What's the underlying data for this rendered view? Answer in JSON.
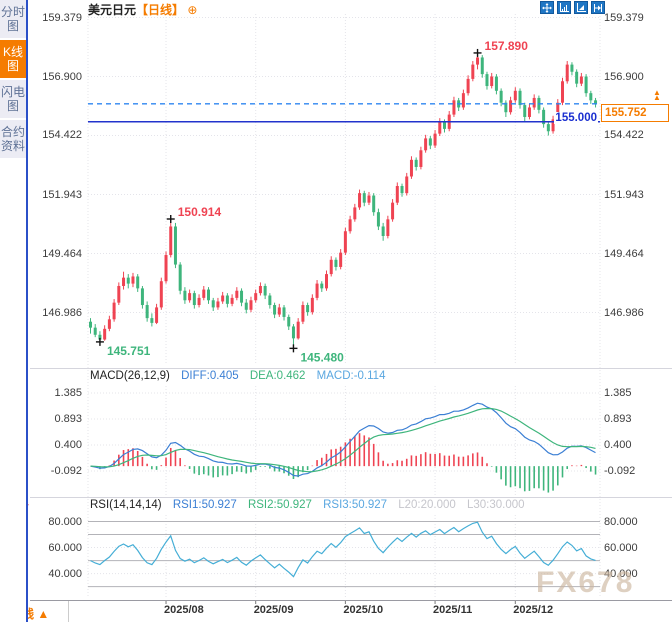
{
  "sidebar": {
    "tabs": [
      {
        "label": "分时图",
        "active": false
      },
      {
        "label": "K线图",
        "active": true
      },
      {
        "label": "闪电图",
        "active": false
      },
      {
        "label": "合约资料",
        "active": false
      }
    ]
  },
  "header": {
    "title": "美元日元",
    "timeframe": "【日线】",
    "add_icon": "⊕",
    "toolbar_icons": [
      "pan-icon",
      "scale-axis-icon",
      "scale-time-icon",
      "jump-latest-icon"
    ]
  },
  "main_chart": {
    "y_axis_labels": [
      "159.379",
      "156.900",
      "154.422",
      "151.943",
      "149.464",
      "146.986"
    ],
    "alert_line": {
      "label": "155.000",
      "price": 155.0
    },
    "current_price": {
      "label": "155.752",
      "price": 155.752,
      "marker": "▲"
    }
  },
  "macd_panel": {
    "title": "MACD(26,12,9)",
    "diff_label": "DIFF:0.405",
    "dea_label": "DEA:0.462",
    "macd_label": "MACD:-0.114",
    "axis_labels": [
      "1.385",
      "0.893",
      "0.400",
      "-0.092"
    ]
  },
  "rsi_panel": {
    "title": "RSI(14,14,14)",
    "rsi1_label": "RSI1:50.927",
    "rsi2_label": "RSI2:50.927",
    "rsi3_label": "RSI3:50.927",
    "l20_label": "L20:20.000",
    "l30_label": "L30:30.000",
    "axis_labels": [
      "80.000",
      "60.000",
      "40.000"
    ],
    "levels": [
      80,
      70,
      50,
      30
    ]
  },
  "footer": {
    "period_label": "日线",
    "arrow": "▲"
  },
  "watermark": "FX678",
  "colors": {
    "up": "#ef4352",
    "down": "#3eb57c",
    "accent": "#f57c00",
    "alert_blue": "#2233cc",
    "dash_blue": "#2e86f0",
    "diff_blue": "#3b7fd4",
    "dea_green": "#3eb57c",
    "rsi_blue": "#45aed6",
    "grid": "#e4e4ea",
    "level_gray": "#b3b3b8",
    "marker_black": "#111"
  },
  "chart_data": {
    "type": "candlestick",
    "symbol": "美元日元",
    "interval": "日线",
    "y_ticks": [
      159.379,
      156.9,
      154.422,
      151.943,
      149.464,
      146.986
    ],
    "macd_ticks": [
      1.385,
      0.893,
      0.4,
      -0.092
    ],
    "rsi_ticks": [
      80,
      60,
      40
    ],
    "months": [
      {
        "label": "2025/08",
        "index": 16
      },
      {
        "label": "2025/09",
        "index": 35
      },
      {
        "label": "2025/10",
        "index": 54
      },
      {
        "label": "2025/11",
        "index": 73
      },
      {
        "label": "2025/12",
        "index": 90
      }
    ],
    "annotations": [
      {
        "index": 2,
        "price": 145.751,
        "label": "145.751",
        "color": "down",
        "placement": "below"
      },
      {
        "index": 17,
        "price": 150.914,
        "label": "150.914",
        "color": "up",
        "placement": "above"
      },
      {
        "index": 43,
        "price": 145.48,
        "label": "145.480",
        "color": "down",
        "placement": "below"
      },
      {
        "index": 82,
        "price": 157.89,
        "label": "157.890",
        "color": "up",
        "placement": "above"
      }
    ],
    "candles": [
      [
        146.6,
        146.75,
        146.1,
        146.35
      ],
      [
        146.35,
        146.5,
        145.95,
        146.05
      ],
      [
        146.05,
        146.2,
        145.751,
        145.85
      ],
      [
        145.85,
        146.45,
        145.8,
        146.3
      ],
      [
        146.3,
        146.85,
        146.2,
        146.7
      ],
      [
        146.7,
        147.55,
        146.6,
        147.4
      ],
      [
        147.4,
        148.25,
        147.3,
        148.1
      ],
      [
        148.1,
        148.7,
        147.95,
        148.45
      ],
      [
        148.45,
        148.6,
        148.0,
        148.2
      ],
      [
        148.2,
        148.65,
        148.05,
        148.5
      ],
      [
        148.5,
        148.6,
        147.85,
        148.0
      ],
      [
        148.0,
        148.1,
        147.15,
        147.3
      ],
      [
        147.3,
        147.45,
        146.6,
        146.75
      ],
      [
        146.75,
        146.95,
        146.4,
        146.55
      ],
      [
        146.55,
        147.35,
        146.5,
        147.2
      ],
      [
        147.2,
        148.45,
        147.1,
        148.3
      ],
      [
        148.3,
        149.55,
        148.2,
        149.4
      ],
      [
        149.4,
        150.914,
        149.3,
        150.6
      ],
      [
        150.6,
        150.75,
        148.85,
        149.0
      ],
      [
        149.0,
        149.1,
        147.75,
        147.9
      ],
      [
        147.9,
        148.05,
        147.35,
        147.5
      ],
      [
        147.5,
        147.95,
        147.4,
        147.8
      ],
      [
        147.8,
        147.9,
        147.15,
        147.3
      ],
      [
        147.3,
        147.75,
        147.2,
        147.6
      ],
      [
        147.6,
        148.1,
        147.5,
        147.95
      ],
      [
        147.95,
        148.05,
        147.35,
        147.5
      ],
      [
        147.5,
        147.6,
        147.05,
        147.2
      ],
      [
        147.2,
        147.6,
        147.1,
        147.45
      ],
      [
        147.45,
        147.85,
        147.35,
        147.7
      ],
      [
        147.7,
        147.8,
        147.2,
        147.35
      ],
      [
        147.35,
        147.75,
        147.25,
        147.6
      ],
      [
        147.6,
        148.05,
        147.5,
        147.9
      ],
      [
        147.9,
        148.0,
        147.25,
        147.4
      ],
      [
        147.4,
        147.55,
        146.95,
        147.1
      ],
      [
        147.1,
        147.65,
        147.0,
        147.5
      ],
      [
        147.5,
        147.95,
        147.4,
        147.8
      ],
      [
        147.8,
        148.25,
        147.7,
        148.1
      ],
      [
        148.1,
        148.2,
        147.55,
        147.7
      ],
      [
        147.7,
        147.8,
        147.15,
        147.3
      ],
      [
        147.3,
        147.4,
        146.75,
        146.9
      ],
      [
        146.9,
        147.35,
        146.8,
        147.2
      ],
      [
        147.2,
        147.3,
        146.65,
        146.8
      ],
      [
        146.8,
        146.9,
        146.25,
        146.4
      ],
      [
        146.4,
        146.5,
        145.48,
        145.9
      ],
      [
        145.9,
        146.75,
        145.85,
        146.6
      ],
      [
        146.6,
        147.45,
        146.5,
        147.3
      ],
      [
        147.3,
        147.4,
        146.85,
        147.0
      ],
      [
        147.0,
        147.75,
        146.9,
        147.6
      ],
      [
        147.6,
        148.35,
        147.5,
        148.2
      ],
      [
        148.2,
        148.3,
        147.85,
        148.0
      ],
      [
        148.0,
        148.75,
        147.9,
        148.6
      ],
      [
        148.6,
        149.35,
        148.5,
        149.2
      ],
      [
        149.2,
        149.3,
        148.75,
        148.9
      ],
      [
        148.9,
        149.65,
        148.8,
        149.5
      ],
      [
        149.5,
        150.55,
        149.4,
        150.4
      ],
      [
        150.4,
        151.05,
        150.3,
        150.9
      ],
      [
        150.9,
        151.55,
        150.8,
        151.4
      ],
      [
        151.4,
        152.15,
        151.3,
        152.0
      ],
      [
        152.0,
        152.1,
        151.45,
        151.6
      ],
      [
        151.6,
        152.05,
        151.5,
        151.9
      ],
      [
        151.9,
        152.0,
        151.05,
        151.2
      ],
      [
        151.2,
        151.35,
        150.45,
        150.6
      ],
      [
        150.6,
        150.75,
        150.0,
        150.2
      ],
      [
        150.2,
        151.05,
        150.1,
        150.9
      ],
      [
        150.9,
        151.75,
        150.8,
        151.6
      ],
      [
        151.6,
        152.45,
        151.5,
        152.3
      ],
      [
        152.3,
        152.4,
        151.85,
        152.0
      ],
      [
        152.0,
        152.85,
        151.9,
        152.7
      ],
      [
        152.7,
        153.55,
        152.6,
        153.4
      ],
      [
        153.4,
        153.5,
        152.95,
        153.1
      ],
      [
        153.1,
        153.95,
        153.0,
        153.8
      ],
      [
        153.8,
        154.45,
        153.7,
        154.3
      ],
      [
        154.3,
        154.4,
        153.85,
        154.0
      ],
      [
        154.0,
        154.65,
        153.9,
        154.5
      ],
      [
        154.5,
        155.15,
        154.4,
        155.0
      ],
      [
        155.0,
        155.1,
        154.55,
        154.7
      ],
      [
        154.7,
        155.45,
        154.6,
        155.3
      ],
      [
        155.3,
        156.05,
        155.2,
        155.9
      ],
      [
        155.9,
        156.0,
        155.45,
        155.6
      ],
      [
        155.6,
        156.35,
        155.5,
        156.2
      ],
      [
        156.2,
        156.95,
        156.1,
        156.8
      ],
      [
        156.8,
        157.55,
        156.7,
        157.4
      ],
      [
        157.4,
        157.89,
        157.2,
        157.7
      ],
      [
        157.7,
        157.8,
        156.85,
        157.0
      ],
      [
        157.0,
        157.1,
        156.35,
        156.5
      ],
      [
        156.5,
        157.05,
        156.4,
        156.9
      ],
      [
        156.9,
        157.0,
        156.15,
        156.3
      ],
      [
        156.3,
        156.4,
        155.65,
        155.8
      ],
      [
        155.8,
        155.9,
        155.2,
        155.4
      ],
      [
        155.4,
        156.05,
        155.3,
        155.9
      ],
      [
        155.9,
        156.45,
        155.8,
        156.3
      ],
      [
        156.3,
        156.4,
        155.55,
        155.7
      ],
      [
        155.7,
        155.8,
        155.0,
        155.2
      ],
      [
        155.2,
        155.75,
        155.1,
        155.6
      ],
      [
        155.6,
        156.15,
        155.5,
        156.0
      ],
      [
        156.0,
        156.1,
        155.35,
        155.5
      ],
      [
        155.5,
        155.6,
        154.75,
        154.9
      ],
      [
        154.9,
        155.0,
        154.42,
        154.6
      ],
      [
        154.6,
        155.25,
        154.5,
        155.1
      ],
      [
        155.1,
        155.95,
        155.0,
        155.8
      ],
      [
        155.8,
        156.85,
        155.7,
        156.7
      ],
      [
        156.7,
        157.55,
        156.6,
        157.4
      ],
      [
        157.4,
        157.5,
        156.95,
        157.1
      ],
      [
        157.1,
        157.2,
        156.45,
        156.6
      ],
      [
        156.6,
        157.05,
        156.5,
        156.9
      ],
      [
        156.9,
        157.0,
        156.05,
        156.2
      ],
      [
        156.2,
        156.3,
        155.75,
        155.9
      ],
      [
        155.9,
        156.0,
        155.6,
        155.752
      ]
    ]
  }
}
